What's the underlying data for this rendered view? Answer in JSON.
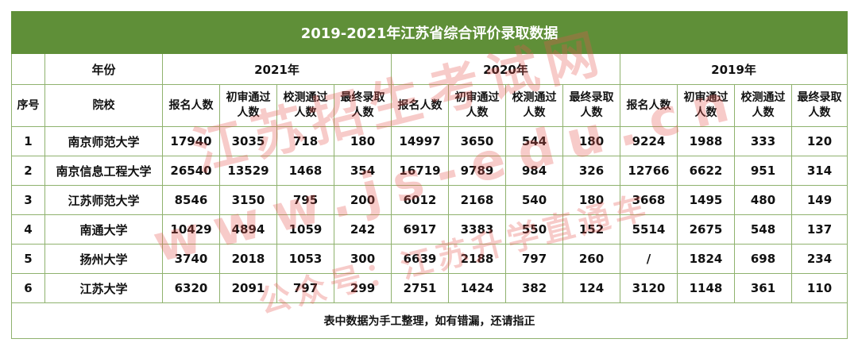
{
  "title": "2019-2021年江苏省综合评价录取数据",
  "header": {
    "year_label": "年份",
    "seq_label": "序号",
    "school_label": "院校",
    "years": [
      "2021年",
      "2020年",
      "2019年"
    ],
    "columns": [
      [
        "报名人数"
      ],
      [
        "初审通过",
        "人数"
      ],
      [
        "校测通过",
        "人数"
      ],
      [
        "最终录取",
        "人数"
      ]
    ]
  },
  "rows": [
    {
      "seq": "1",
      "school": "南京师范大学",
      "values": [
        "17940",
        "3035",
        "718",
        "180",
        "14997",
        "3650",
        "544",
        "180",
        "9224",
        "1988",
        "333",
        "120"
      ]
    },
    {
      "seq": "2",
      "school": "南京信息工程大学",
      "values": [
        "26540",
        "13529",
        "1468",
        "354",
        "16719",
        "9789",
        "984",
        "326",
        "12766",
        "6622",
        "951",
        "314"
      ]
    },
    {
      "seq": "3",
      "school": "江苏师范大学",
      "values": [
        "8546",
        "3150",
        "795",
        "200",
        "6012",
        "2168",
        "540",
        "180",
        "3668",
        "1495",
        "480",
        "149"
      ]
    },
    {
      "seq": "4",
      "school": "南通大学",
      "values": [
        "10429",
        "4894",
        "1059",
        "242",
        "6917",
        "3383",
        "550",
        "152",
        "5514",
        "2675",
        "548",
        "137"
      ]
    },
    {
      "seq": "5",
      "school": "扬州大学",
      "values": [
        "3740",
        "2018",
        "1053",
        "300",
        "6639",
        "2188",
        "797",
        "260",
        "/",
        "1824",
        "698",
        "234"
      ]
    },
    {
      "seq": "6",
      "school": "江苏大学",
      "values": [
        "6320",
        "2091",
        "797",
        "299",
        "2751",
        "1424",
        "382",
        "124",
        "3120",
        "1148",
        "361",
        "110"
      ]
    }
  ],
  "footer_note": "表中数据为手工整理，如有错漏，还请指正",
  "watermark": {
    "line1": "江苏招生考试网",
    "line2": "www.js-edu.cn",
    "line3": "公众号：江苏升学直通车",
    "color": "#e8554f"
  },
  "colors": {
    "header_bg": "#5f8f38",
    "border": "#8fb26e"
  }
}
